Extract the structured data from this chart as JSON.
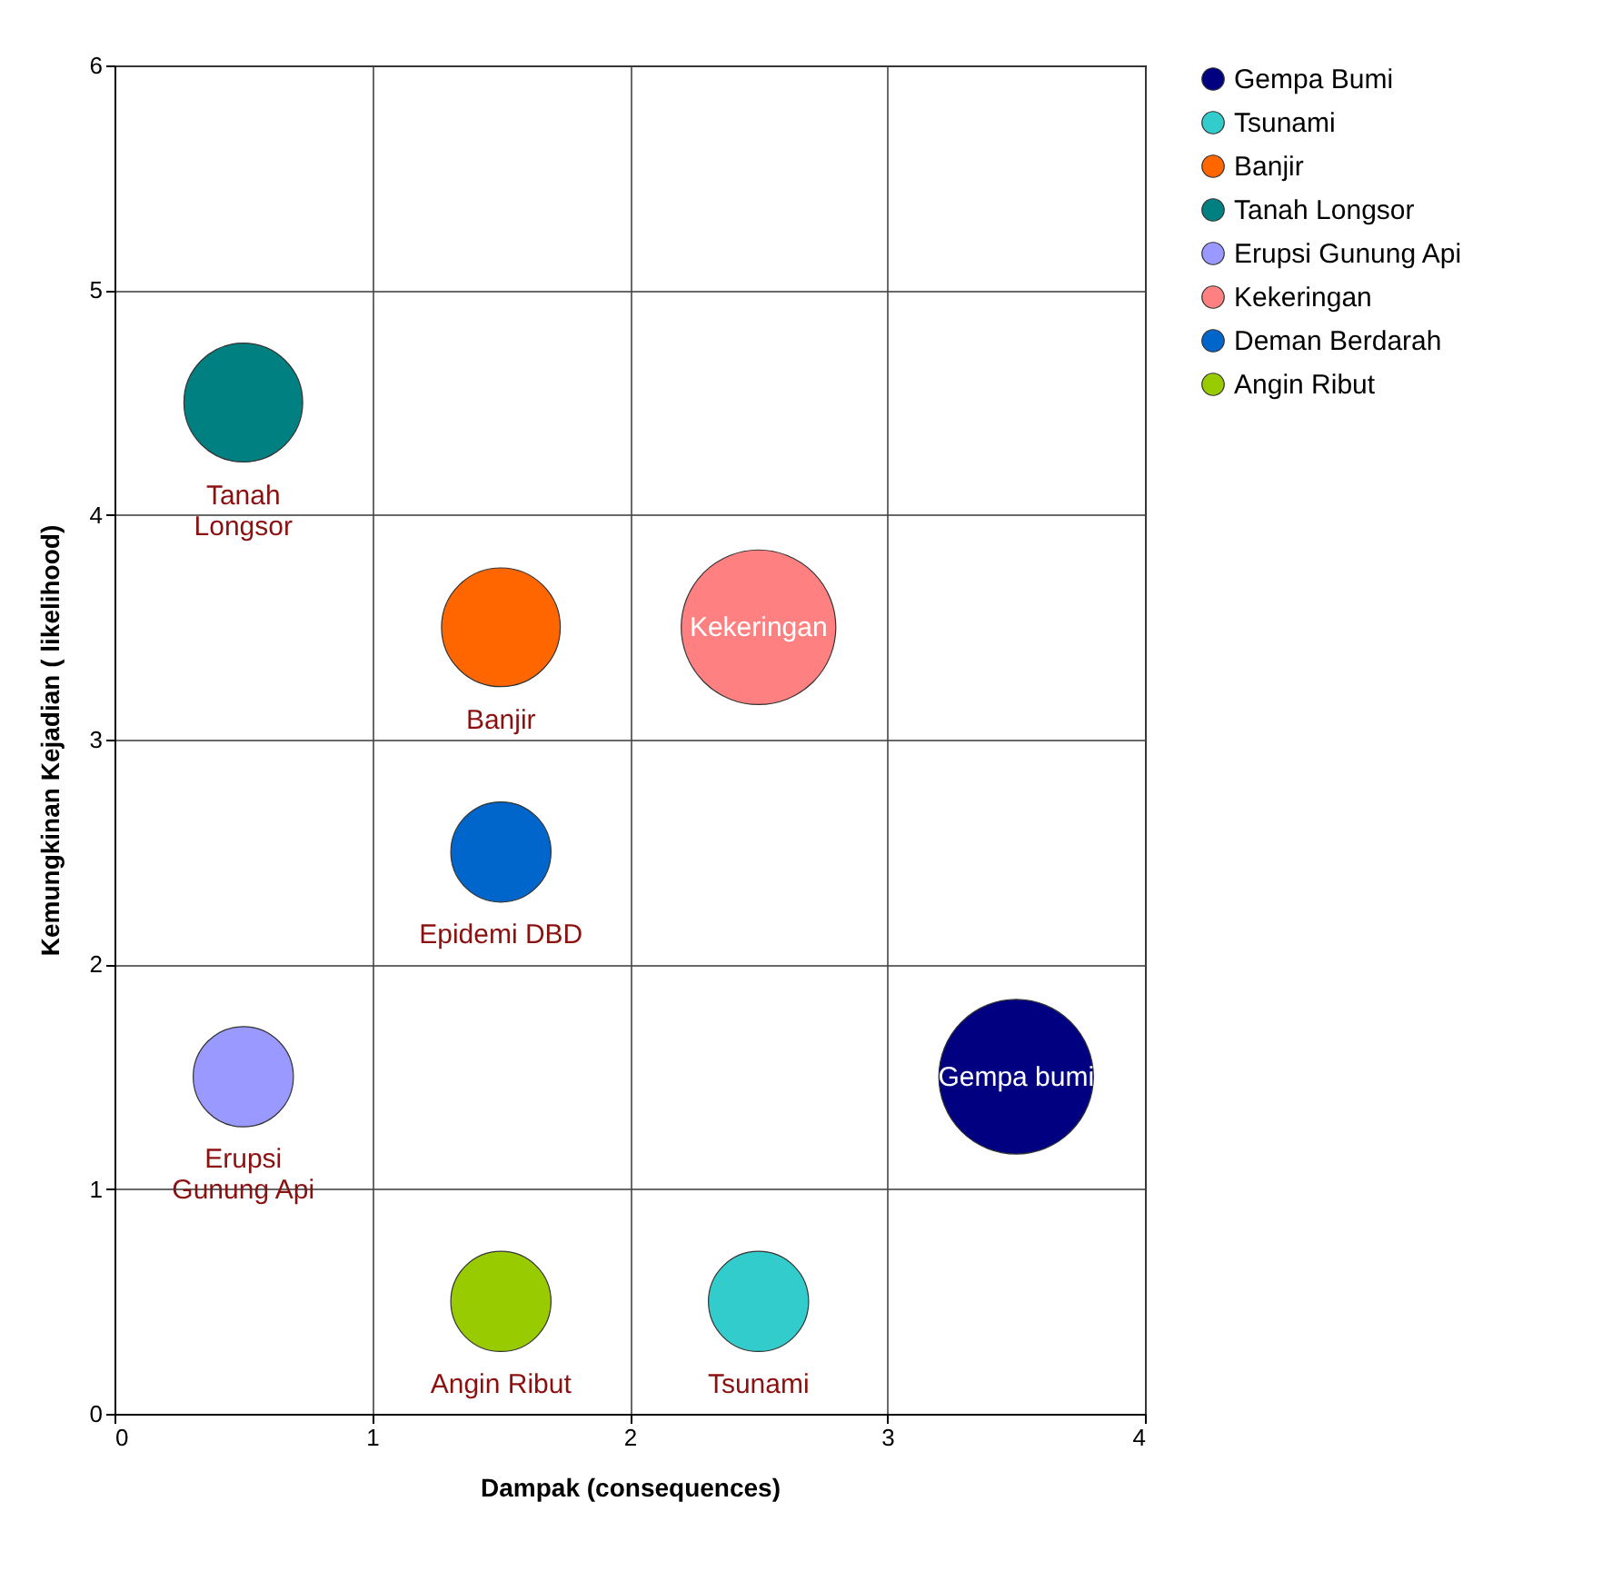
{
  "chart_data": {
    "type": "bubble",
    "xlabel": "Dampak (consequences)",
    "ylabel": "Kemungkinan Kejadian ( likelihood)",
    "xlim": [
      0,
      4
    ],
    "xticks": [
      0,
      1,
      2,
      3,
      4
    ],
    "ylim": [
      0,
      6
    ],
    "yticks": [
      0,
      1,
      2,
      3,
      4,
      5,
      6
    ],
    "grid": true,
    "legend": "right",
    "series": [
      {
        "name": "Gempa Bumi",
        "color": "#000080",
        "x": [
          3.5
        ],
        "values": [
          1.5
        ],
        "sizes": [
          1
        ]
      },
      {
        "name": "Tsunami",
        "color": "#33cccc",
        "x": [
          2.5
        ],
        "values": [
          0.5
        ],
        "sizes": [
          0.42
        ]
      },
      {
        "name": "Banjir",
        "color": "#ff6600",
        "x": [
          1.5
        ],
        "values": [
          3.5
        ],
        "sizes": [
          0.59
        ]
      },
      {
        "name": "Tanah Longsor",
        "color": "#008080",
        "x": [
          0.5
        ],
        "values": [
          4.5
        ],
        "sizes": [
          0.59
        ]
      },
      {
        "name": "Erupsi Gunung Api",
        "color": "#9999ff",
        "x": [
          0.5
        ],
        "values": [
          1.5
        ],
        "sizes": [
          0.42
        ]
      },
      {
        "name": "Kekeringan",
        "color": "#ff8080",
        "x": [
          2.5
        ],
        "values": [
          3.5
        ],
        "sizes": [
          1
        ]
      },
      {
        "name": "Deman Berdarah",
        "color": "#0066cc",
        "x": [
          1.5
        ],
        "values": [
          2.5
        ],
        "sizes": [
          0.42
        ]
      },
      {
        "name": "Angin Ribut",
        "color": "#99cc00",
        "x": [
          1.5
        ],
        "values": [
          0.5
        ],
        "sizes": [
          0.42
        ]
      }
    ],
    "annotations": [
      {
        "text": "Tanah\nLongsor",
        "x": 0.5,
        "y": 4.5
      },
      {
        "text": "Banjir",
        "x": 1.5,
        "y": 3.5
      },
      {
        "text": "Kekeringan",
        "x": 2.5,
        "y": 3.5
      },
      {
        "text": "Epidemi DBD",
        "x": 1.5,
        "y": 2.5
      },
      {
        "text": "Gempa bumi",
        "x": 3.5,
        "y": 1.5
      },
      {
        "text": "Erupsi\nGunung Api",
        "x": 0.5,
        "y": 1.5
      },
      {
        "text": "Angin Ribut",
        "x": 1.5,
        "y": 0.5
      },
      {
        "text": "Tsunami",
        "x": 2.5,
        "y": 0.5
      }
    ]
  }
}
